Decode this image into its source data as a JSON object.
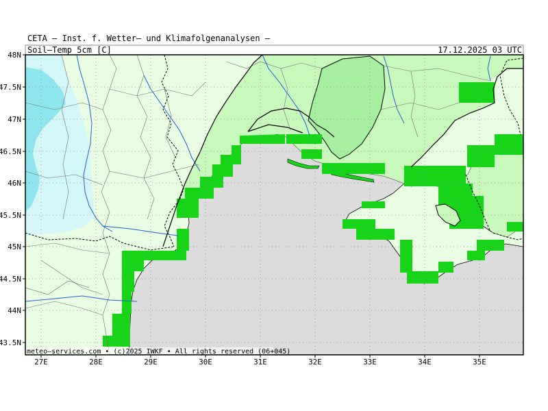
{
  "header": {
    "title": "CETA – Inst. f. Wetter– und Klimafolgenanalysen –",
    "variable": "Soil–Temp 5cm [C]",
    "valid_time": "17.12.2025 03 UTC"
  },
  "axes": {
    "lat_ticks": [
      "48N",
      "47.5N",
      "47N",
      "46.5N",
      "46N",
      "45.5N",
      "45N",
      "44.5N",
      "44N",
      "43.5N"
    ],
    "lon_ticks": [
      "27E",
      "28E",
      "29E",
      "30E",
      "31E",
      "32E",
      "33E",
      "34E",
      "35E"
    ]
  },
  "credit": "meteo–services.com • (c)2025 IWKF • All rights reserved (06+045)",
  "colors": {
    "sea": "#dcdcdc",
    "land_light": "#e8fde2",
    "land_mid": "#c8f8bc",
    "land_deep": "#a6efa0",
    "cold_cyan": "#d4f6f8",
    "cold_cyan_strong": "#8ee6ec",
    "coast_bright": "#18d418",
    "rivers": "#1f5fd0",
    "borders": "#707070"
  }
}
